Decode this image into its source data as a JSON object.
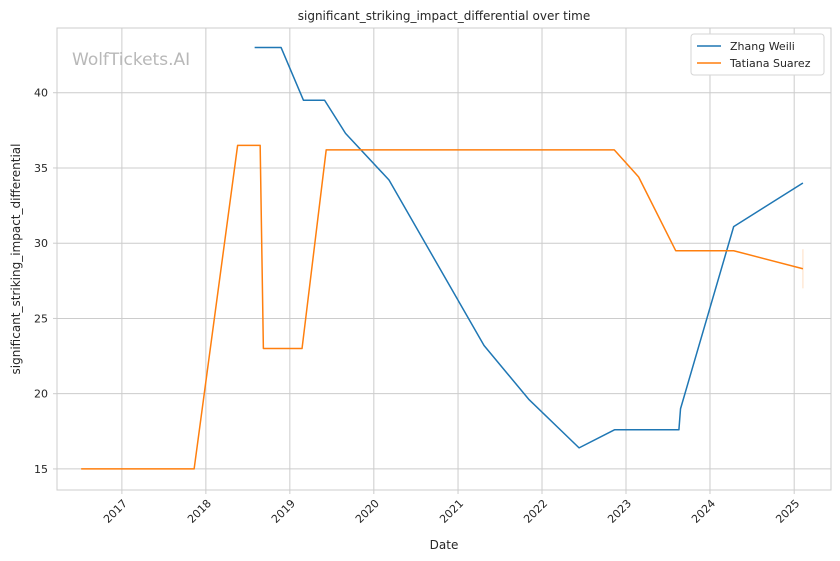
{
  "watermark": "WolfTickets.AI",
  "chart_data": {
    "type": "line",
    "title": "significant_striking_impact_differential over time",
    "xlabel": "Date",
    "ylabel": "significant_striking_impact_differential",
    "x_type": "date",
    "xlim": [
      "2016-03-25",
      "2025-06-10"
    ],
    "ylim": [
      13.6,
      44.3
    ],
    "x_ticks": [
      "2017-01-01",
      "2018-01-01",
      "2019-01-01",
      "2020-01-01",
      "2021-01-01",
      "2022-01-01",
      "2023-01-01",
      "2024-01-01",
      "2025-01-01"
    ],
    "x_tick_labels": [
      "2017",
      "2018",
      "2019",
      "2020",
      "2021",
      "2022",
      "2023",
      "2024",
      "2025"
    ],
    "y_ticks": [
      15,
      20,
      25,
      30,
      35,
      40
    ],
    "grid": true,
    "legend_position": "top-right",
    "series": [
      {
        "name": "Zhang Weili",
        "color": "#1f77b4",
        "points": [
          [
            "2018-08-01",
            43.0
          ],
          [
            "2018-11-24",
            43.0
          ],
          [
            "2019-03-01",
            39.5
          ],
          [
            "2019-06-01",
            39.5
          ],
          [
            "2019-08-31",
            37.3
          ],
          [
            "2020-03-07",
            34.2
          ],
          [
            "2021-04-24",
            23.2
          ],
          [
            "2021-11-06",
            19.6
          ],
          [
            "2022-06-11",
            16.4
          ],
          [
            "2022-11-12",
            17.6
          ],
          [
            "2023-08-19",
            17.6
          ],
          [
            "2023-08-26",
            19.0
          ],
          [
            "2024-04-13",
            31.1
          ],
          [
            "2025-02-08",
            34.0
          ]
        ]
      },
      {
        "name": "Tatiana Suarez",
        "color": "#ff7f0e",
        "points": [
          [
            "2016-07-08",
            15.0
          ],
          [
            "2017-11-11",
            15.0
          ],
          [
            "2018-05-19",
            36.5
          ],
          [
            "2018-08-25",
            36.5
          ],
          [
            "2018-09-08",
            23.0
          ],
          [
            "2019-02-23",
            23.0
          ],
          [
            "2019-06-08",
            36.2
          ],
          [
            "2022-11-11",
            36.2
          ],
          [
            "2023-02-25",
            34.4
          ],
          [
            "2023-08-05",
            29.5
          ],
          [
            "2024-04-13",
            29.5
          ],
          [
            "2025-02-08",
            28.3
          ]
        ],
        "error_bar": {
          "x": "2025-02-08",
          "low": 27.0,
          "high": 29.6
        }
      }
    ]
  }
}
